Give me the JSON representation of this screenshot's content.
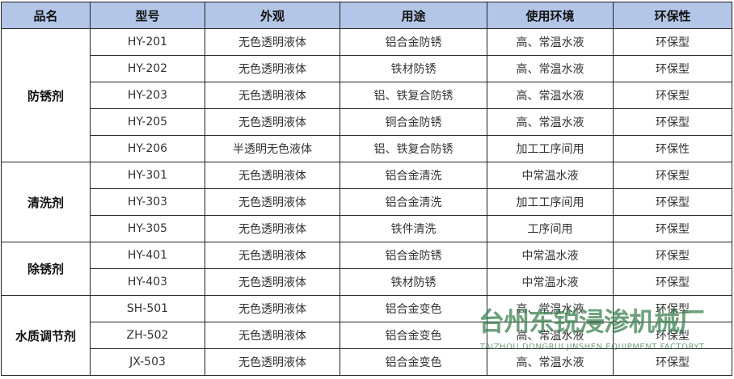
{
  "headers": [
    "品名",
    "型号",
    "外观",
    "用途",
    "使用环境",
    "环保性"
  ],
  "groups": [
    {
      "name": "防锈剂",
      "rows": [
        [
          "HY-201",
          "无色透明液体",
          "铝合金防锈",
          "高、常温水液",
          "环保型"
        ],
        [
          "HY-202",
          "无色透明液体",
          "铁材防锈",
          "高、常温水液",
          "环保型"
        ],
        [
          "HY-203",
          "无色透明液体",
          "铝、铁复合防锈",
          "高、常温水液",
          "环保型"
        ],
        [
          "HY-205",
          "无色透明液体",
          "铜合金防锈",
          "高、常温水液",
          "环保型"
        ],
        [
          "HY-206",
          "半透明无色液体",
          "铝、铁复合防锈",
          "加工工序间用",
          "环保性"
        ]
      ]
    },
    {
      "name": "清洗剂",
      "rows": [
        [
          "HY-301",
          "无色透明液体",
          "铝合金清洗",
          "中常温水液",
          "环保型"
        ],
        [
          "HY-303",
          "无色透明液体",
          "铝合金清洗",
          "加工工序间用",
          "环保型"
        ],
        [
          "HY-305",
          "无色透明液体",
          "铁件清洗",
          "工序间用",
          "环保型"
        ]
      ]
    },
    {
      "name": "除锈剂",
      "rows": [
        [
          "HY-401",
          "无色透明液体",
          "铝合金防锈",
          "中常温水液",
          "环保型"
        ],
        [
          "HY-403",
          "无色透明液体",
          "铁材防锈",
          "中常温水液",
          "环保型"
        ]
      ]
    },
    {
      "name": "水质调节剂",
      "rows": [
        [
          "SH-501",
          "无色透明液体",
          "铝合金变色",
          "高、常温水液",
          "环保型"
        ],
        [
          "ZH-502",
          "无色透明液体",
          "铝合金变色",
          "高、常温水液",
          "环保型"
        ],
        [
          "JX-503",
          "无色透明液体",
          "铝合金变色",
          "高、常温水液",
          "环保型"
        ]
      ]
    }
  ],
  "watermark": {
    "cn": "台州东锐浸渗机械厂",
    "en": "TAIZHOU DONGRUI JINSHEN EQUIPMENT FACTORYT"
  },
  "colors": {
    "header_bg": "#b4c6e7",
    "watermark": "#3c8250"
  }
}
